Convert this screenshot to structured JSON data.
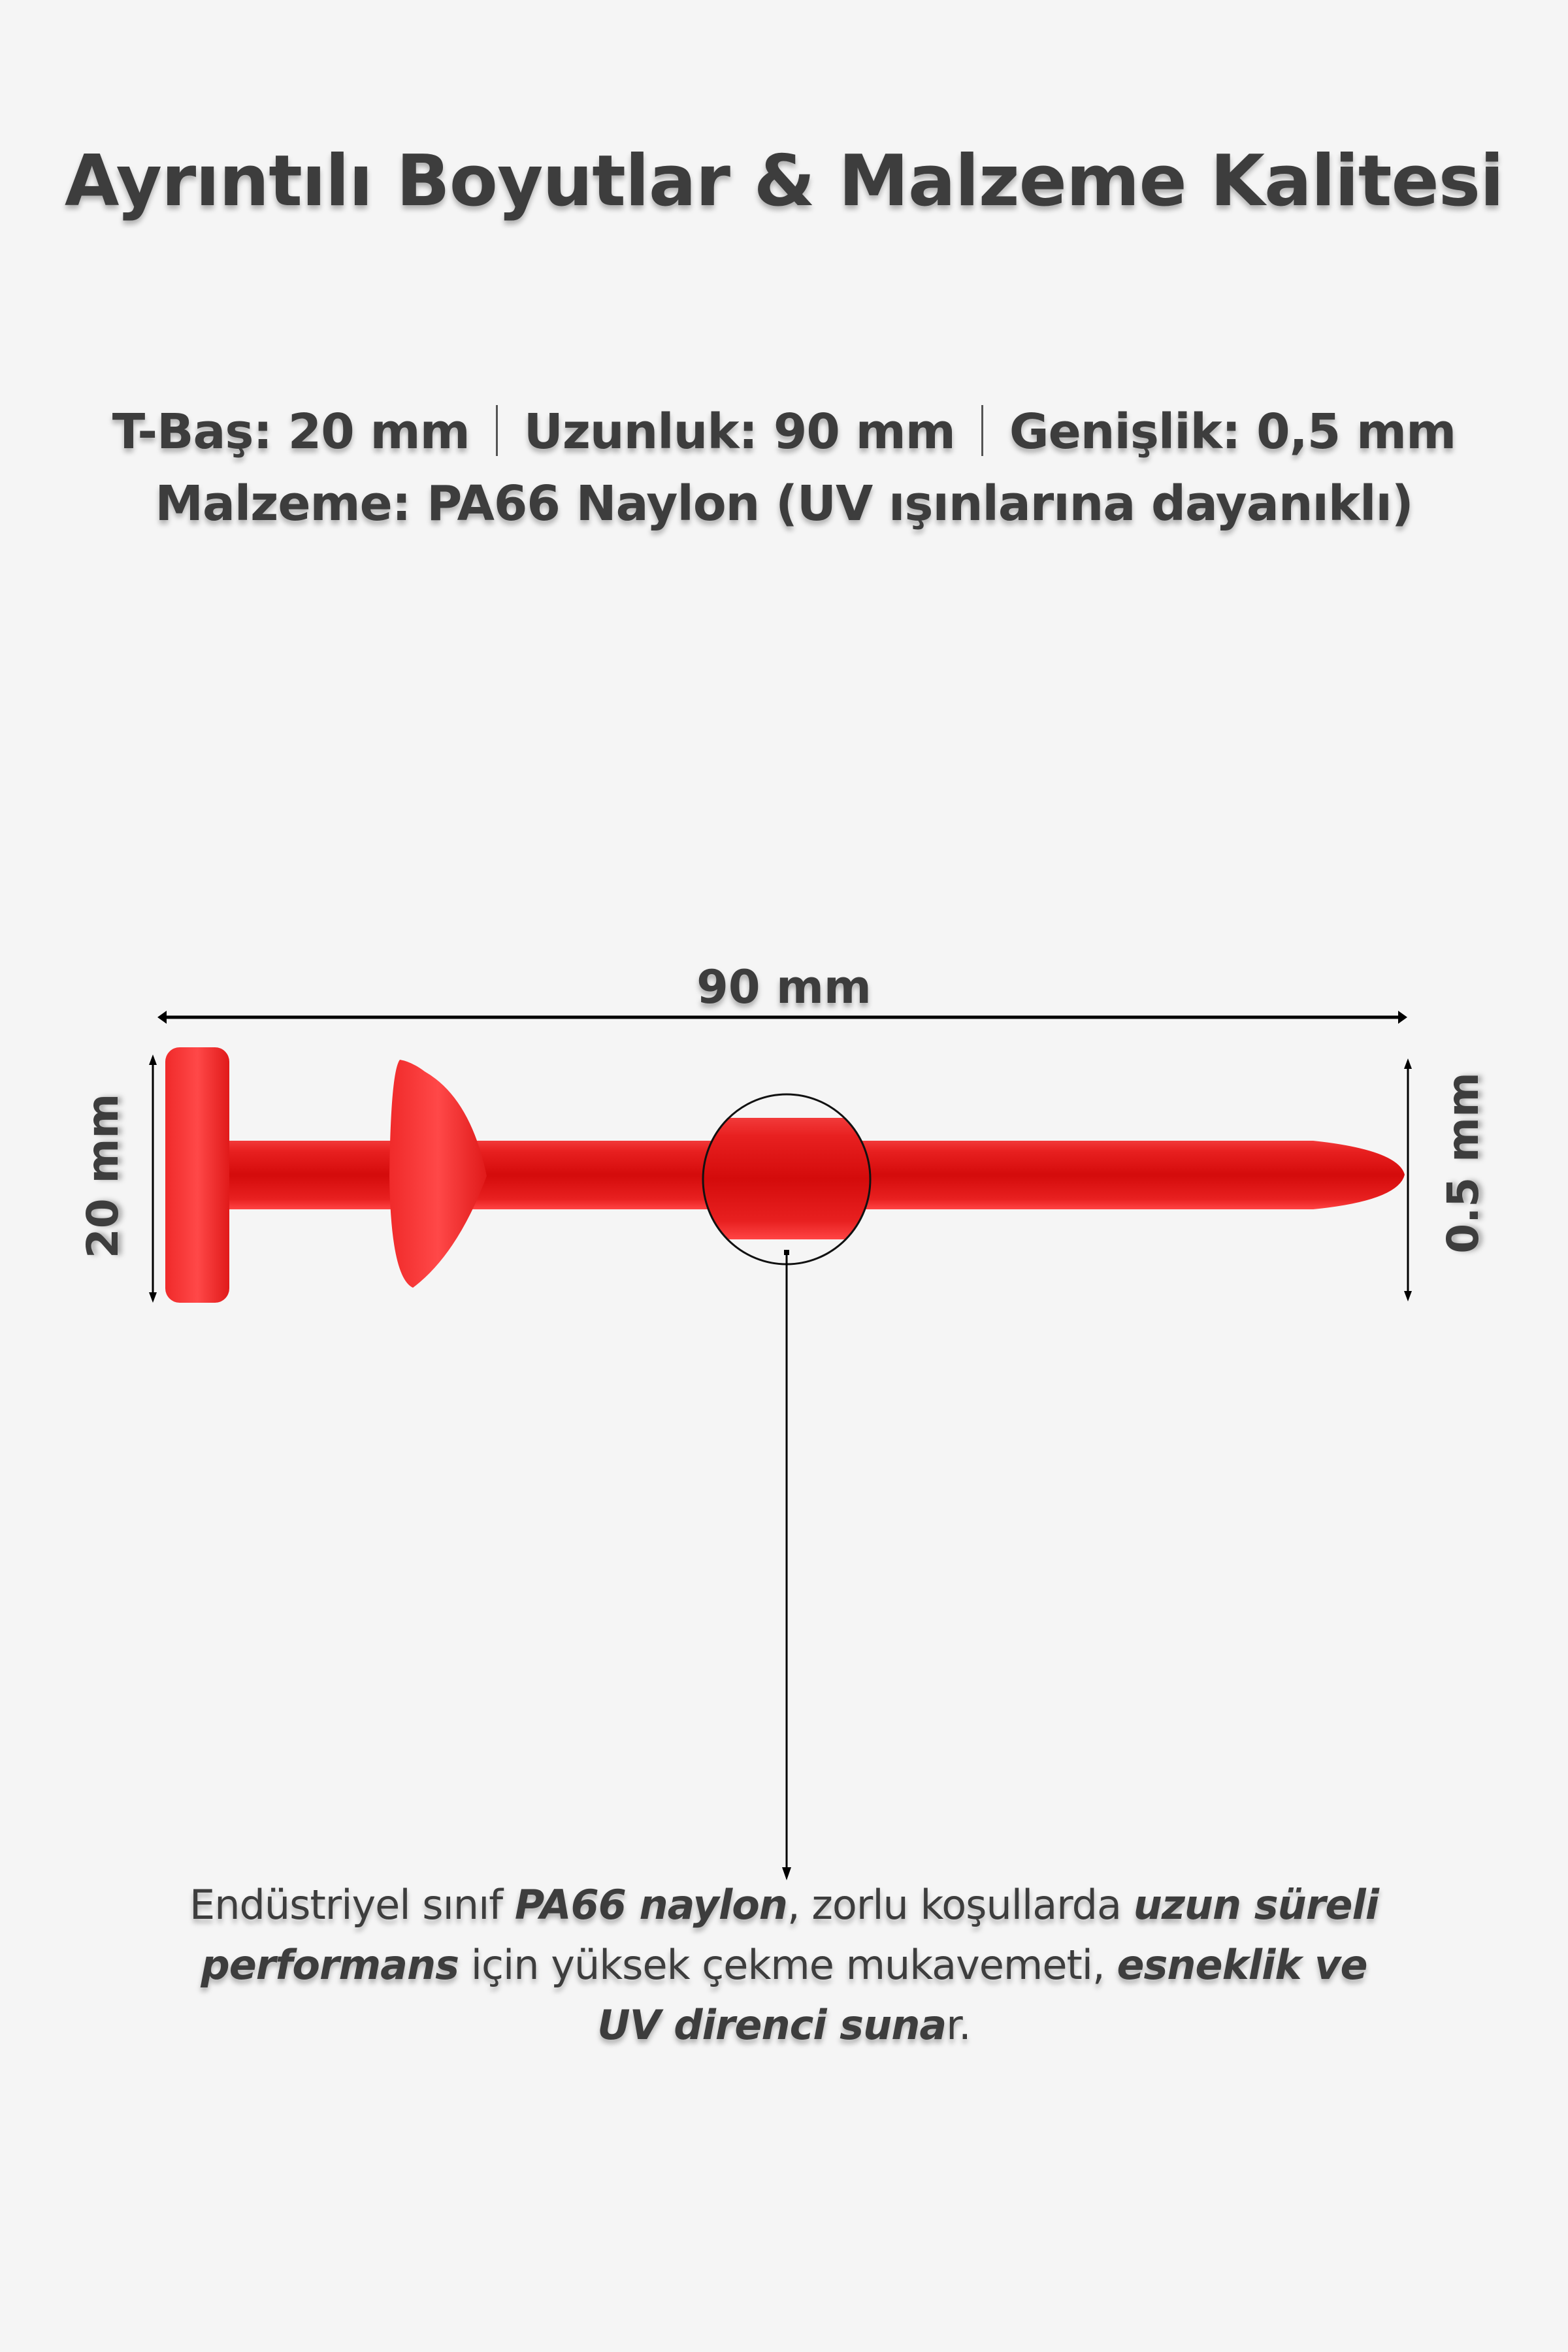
{
  "title": "Ayrıntılı Boyutlar & Malzeme Kalitesi",
  "specs": {
    "t_head": "T-Baş: 20 mm",
    "length": "Uzunluk: 90 mm",
    "width": "Genişlik: 0,5 mm",
    "material": "Malzeme: PA66 Naylon (UV ışınlarına dayanıklı)"
  },
  "diagram": {
    "length_label": "90 mm",
    "head_label": "20 mm",
    "width_label": "0.5 mm",
    "product_color": "#e8141a"
  },
  "description": {
    "line1": [
      {
        "t": "Endüstriyel sınıf ",
        "b": false
      },
      {
        "t": "PA66 naylon",
        "b": true
      },
      {
        "t": ", zorlu koşullarda ",
        "b": false
      },
      {
        "t": "uzun süreli",
        "b": true
      }
    ],
    "line2": [
      {
        "t": "performans",
        "b": true
      },
      {
        "t": " için yüksek çekme mukavemeti, ",
        "b": false
      },
      {
        "t": "esneklik ve",
        "b": true
      }
    ],
    "line3": [
      {
        "t": "UV direnci suna",
        "b": true
      },
      {
        "t": "r.",
        "b": false
      }
    ]
  }
}
